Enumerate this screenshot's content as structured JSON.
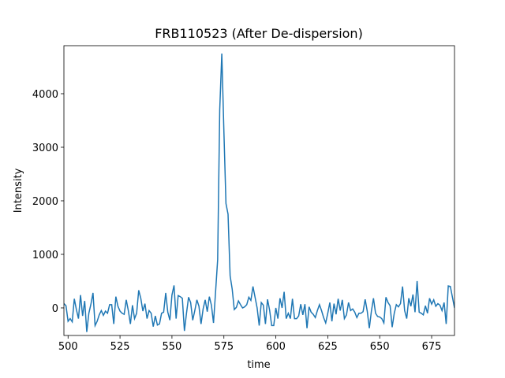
{
  "chart_data": {
    "type": "line",
    "title": "FRB110523 (After De-dispersion)",
    "xlabel": "time",
    "ylabel": "Intensity",
    "x": [
      498,
      499,
      500,
      501,
      502,
      503,
      504,
      505,
      506,
      507,
      508,
      509,
      510,
      511,
      512,
      513,
      514,
      515,
      516,
      517,
      518,
      519,
      520,
      521,
      522,
      523,
      524,
      525,
      526,
      527,
      528,
      529,
      530,
      531,
      532,
      533,
      534,
      535,
      536,
      537,
      538,
      539,
      540,
      541,
      542,
      543,
      544,
      545,
      546,
      547,
      548,
      549,
      550,
      551,
      552,
      553,
      554,
      555,
      556,
      557,
      558,
      559,
      560,
      561,
      562,
      563,
      564,
      565,
      566,
      567,
      568,
      569,
      570,
      571,
      572,
      573,
      574,
      575,
      576,
      577,
      578,
      579,
      580,
      581,
      582,
      583,
      584,
      585,
      586,
      587,
      588,
      589,
      590,
      591,
      592,
      593,
      594,
      595,
      596,
      597,
      598,
      599,
      600,
      601,
      602,
      603,
      604,
      605,
      606,
      607,
      608,
      609,
      610,
      611,
      612,
      613,
      614,
      615,
      616,
      617,
      618,
      619,
      620,
      621,
      622,
      623,
      624,
      625,
      626,
      627,
      628,
      629,
      630,
      631,
      632,
      633,
      634,
      635,
      636,
      637,
      638,
      639,
      640,
      641,
      642,
      643,
      644,
      645,
      646,
      647,
      648,
      649,
      650,
      651,
      652,
      653,
      654,
      655,
      656,
      657,
      658,
      659,
      660,
      661,
      662,
      663,
      664,
      665,
      666,
      667,
      668,
      669,
      670,
      671,
      672,
      673,
      674,
      675,
      676,
      677,
      678,
      679,
      680,
      681,
      682,
      683,
      684,
      685,
      686
    ],
    "series": [
      {
        "name": "intensity",
        "color": "#1f77b4",
        "values": [
          80,
          40,
          -250,
          -200,
          -260,
          170,
          -30,
          -200,
          240,
          -150,
          130,
          -450,
          -100,
          70,
          280,
          -330,
          -250,
          -130,
          -50,
          -140,
          -60,
          -100,
          60,
          60,
          -300,
          210,
          30,
          -60,
          -100,
          -120,
          150,
          -50,
          -300,
          50,
          -200,
          -100,
          330,
          180,
          -60,
          80,
          -200,
          -50,
          -100,
          -350,
          -150,
          -320,
          -300,
          -100,
          -80,
          280,
          -80,
          -230,
          240,
          420,
          -200,
          230,
          210,
          180,
          -430,
          -100,
          200,
          100,
          -230,
          -50,
          150,
          30,
          -300,
          -20,
          150,
          -70,
          210,
          50,
          -280,
          300,
          900,
          3700,
          4750,
          3300,
          1950,
          1750,
          600,
          350,
          -30,
          10,
          130,
          60,
          0,
          20,
          60,
          200,
          140,
          400,
          200,
          0,
          -330,
          100,
          50,
          -300,
          160,
          -40,
          -330,
          -330,
          0,
          -200,
          180,
          0,
          300,
          -200,
          -100,
          -200,
          170,
          -200,
          -200,
          -150,
          70,
          -130,
          70,
          -380,
          20,
          -80,
          -120,
          -180,
          -50,
          60,
          -50,
          -180,
          -280,
          -100,
          100,
          -250,
          80,
          -120,
          170,
          -50,
          150,
          -200,
          -130,
          100,
          -50,
          -20,
          -80,
          -180,
          -100,
          -100,
          -70,
          160,
          -60,
          -380,
          -60,
          180,
          -100,
          -160,
          -170,
          -200,
          -280,
          200,
          100,
          40,
          -360,
          -100,
          60,
          20,
          80,
          400,
          -50,
          -200,
          180,
          30,
          250,
          -80,
          500,
          -80,
          -100,
          -130,
          40,
          -100,
          180,
          70,
          150,
          30,
          80,
          50,
          -50,
          100,
          -300,
          410,
          400,
          200,
          0
        ]
      }
    ],
    "xlim": [
      498,
      686
    ],
    "ylim": [
      -515,
      4897
    ],
    "xticks": [
      500,
      525,
      550,
      575,
      600,
      625,
      650,
      675
    ],
    "yticks": [
      0,
      1000,
      2000,
      3000,
      4000
    ]
  }
}
